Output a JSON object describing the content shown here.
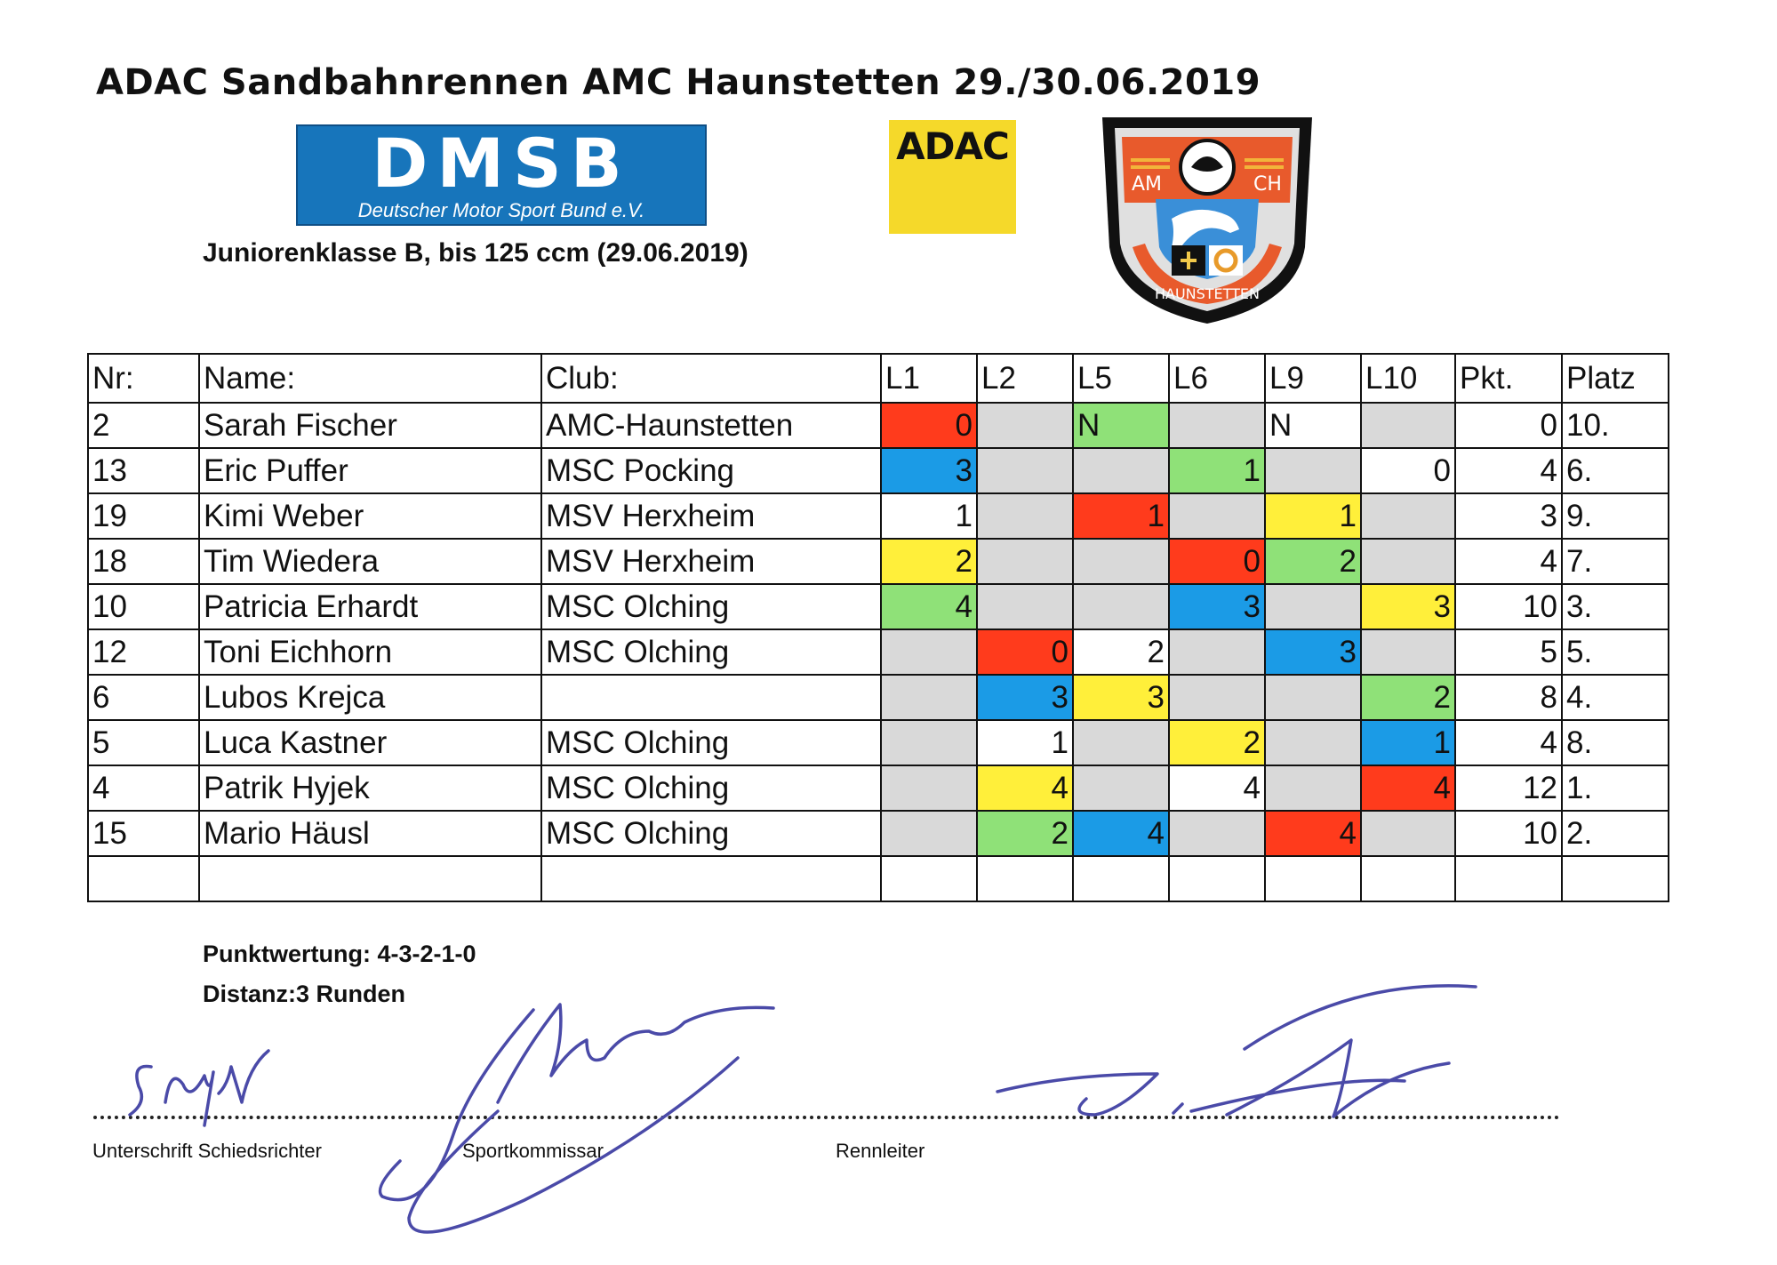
{
  "title": "ADAC Sandbahnrennen AMC Haunstetten 29./30.06.2019",
  "logos": {
    "dmsb_main": "DMSB",
    "dmsb_sub": "Deutscher Motor Sport Bund e.V.",
    "adac": "ADAC",
    "crest_left": "AM",
    "crest_right": "CH",
    "crest_bottom": "HAUNSTETTEN"
  },
  "subtitle": "Juniorenklasse B, bis 125 ccm (29.06.2019)",
  "table": {
    "headers": [
      "Nr:",
      "Name:",
      "Club:",
      "L1",
      "L2",
      "L5",
      "L6",
      "L9",
      "L10",
      "Pkt.",
      "Platz"
    ],
    "rows": [
      {
        "nr": "2",
        "name": "Sarah Fischer",
        "club": "AMC-Haunstetten",
        "l1": "0",
        "l2": "",
        "l5": "N",
        "l6": "",
        "l9": "N",
        "l10": "",
        "pkt": "0",
        "platz": "10."
      },
      {
        "nr": "13",
        "name": "Eric Puffer",
        "club": "MSC Pocking",
        "l1": "3",
        "l2": "",
        "l5": "",
        "l6": "1",
        "l9": "",
        "l10": "0",
        "pkt": "4",
        "platz": "6."
      },
      {
        "nr": "19",
        "name": "Kimi Weber",
        "club": "MSV Herxheim",
        "l1": "1",
        "l2": "",
        "l5": "1",
        "l6": "",
        "l9": "1",
        "l10": "",
        "pkt": "3",
        "platz": "9."
      },
      {
        "nr": "18",
        "name": "Tim Wiedera",
        "club": "MSV Herxheim",
        "l1": "2",
        "l2": "",
        "l5": "",
        "l6": "0",
        "l9": "2",
        "l10": "",
        "pkt": "4",
        "platz": "7."
      },
      {
        "nr": "10",
        "name": "Patricia Erhardt",
        "club": "MSC Olching",
        "l1": "4",
        "l2": "",
        "l5": "",
        "l6": "3",
        "l9": "",
        "l10": "3",
        "pkt": "10",
        "platz": "3."
      },
      {
        "nr": "12",
        "name": "Toni Eichhorn",
        "club": "MSC Olching",
        "l1": "",
        "l2": "0",
        "l5": "2",
        "l6": "",
        "l9": "3",
        "l10": "",
        "pkt": "5",
        "platz": "5."
      },
      {
        "nr": "6",
        "name": "Lubos Krejca",
        "club": "",
        "l1": "",
        "l2": "3",
        "l5": "3",
        "l6": "",
        "l9": "",
        "l10": "2",
        "pkt": "8",
        "platz": "4."
      },
      {
        "nr": "5",
        "name": "Luca Kastner",
        "club": "MSC Olching",
        "l1": "",
        "l2": "1",
        "l5": "",
        "l6": "2",
        "l9": "",
        "l10": "1",
        "pkt": "4",
        "platz": "8."
      },
      {
        "nr": "4",
        "name": "Patrik Hyjek",
        "club": "MSC Olching",
        "l1": "",
        "l2": "4",
        "l5": "",
        "l6": "4",
        "l9": "",
        "l10": "4",
        "pkt": "12",
        "platz": "1."
      },
      {
        "nr": "15",
        "name": "Mario Häusl",
        "club": "MSC Olching",
        "l1": "",
        "l2": "2",
        "l5": "4",
        "l6": "",
        "l9": "4",
        "l10": "",
        "pkt": "10",
        "platz": "2."
      }
    ]
  },
  "notes": {
    "scoring": "Punktwertung: 4-3-2-1-0",
    "distance": "Distanz:3 Runden"
  },
  "signatures": {
    "referee": "Unterschrift Schiedsrichter",
    "commissioner": "Sportkommissar",
    "race_director": "Rennleiter"
  },
  "colors": {
    "red": "#ff3b1c",
    "blue": "#1b9be6",
    "green": "#8fe178",
    "yellow": "#ffef3a",
    "gray": "#d9d9d9",
    "signature_ink": "#4a4aa8",
    "dmsb_blue": "#1775bb",
    "adac_yellow": "#f5d92a"
  }
}
